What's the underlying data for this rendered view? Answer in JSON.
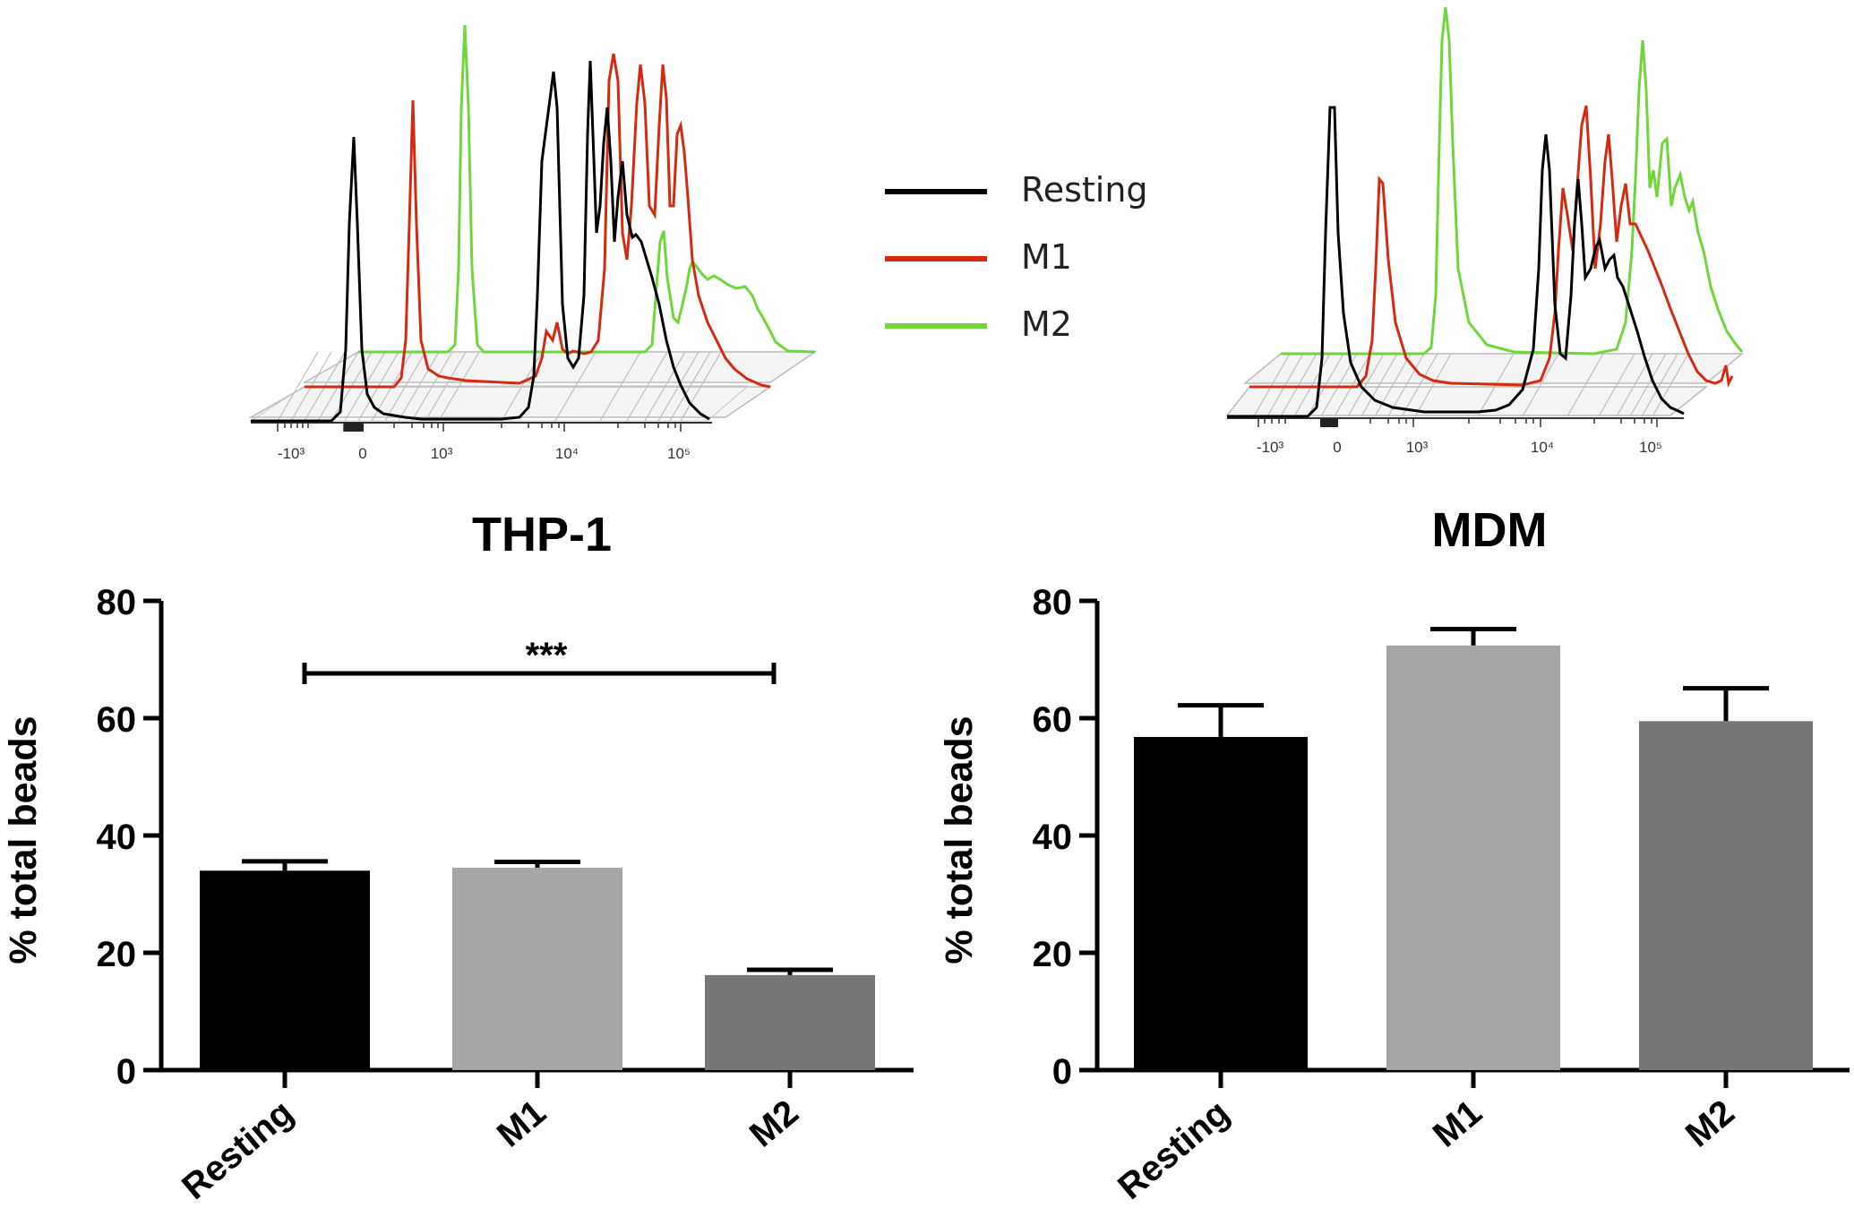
{
  "legend": {
    "items": [
      {
        "label": "Resting",
        "color": "#000000"
      },
      {
        "label": "M1",
        "color": "#d42a10"
      },
      {
        "label": "M2",
        "color": "#6fd63b"
      }
    ]
  },
  "histogram_axis_ticks": [
    "-10³",
    "0",
    "10³",
    "10⁴",
    "10⁵"
  ],
  "chart_data": [
    {
      "type": "bar",
      "title": "THP-1",
      "xlabel": "",
      "ylabel": "% total beads",
      "ylim": [
        0,
        80
      ],
      "yticks": [
        0,
        20,
        40,
        60,
        80
      ],
      "categories": [
        "Resting",
        "M1",
        "M2"
      ],
      "values": [
        34,
        34.5,
        16.2
      ],
      "errors": [
        1.6,
        1.0,
        0.9
      ],
      "bar_colors": [
        "#000000",
        "#a6a6a6",
        "#777777"
      ],
      "significance": {
        "from": "Resting",
        "to": "M2",
        "label": "***",
        "y": 68
      }
    },
    {
      "type": "bar",
      "title": "MDM",
      "xlabel": "",
      "ylabel": "% total beads",
      "ylim": [
        0,
        80
      ],
      "yticks": [
        0,
        20,
        40,
        60,
        80
      ],
      "categories": [
        "Resting",
        "M1",
        "M2"
      ],
      "values": [
        56.8,
        72.4,
        59.5
      ],
      "errors": [
        5.4,
        2.8,
        5.6
      ],
      "bar_colors": [
        "#000000",
        "#a6a6a6",
        "#777777"
      ]
    }
  ]
}
